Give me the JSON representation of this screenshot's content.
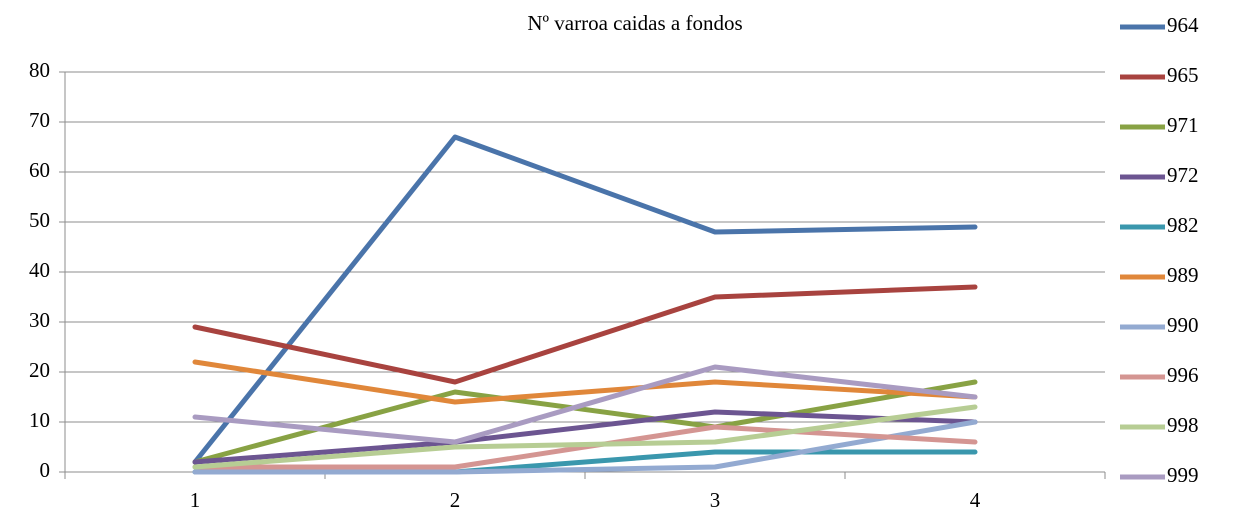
{
  "chart_data": {
    "type": "line",
    "title": "Nº varroa caidas a fondos",
    "categories": [
      "1",
      "2",
      "3",
      "4"
    ],
    "series": [
      {
        "name": "964",
        "color": "#4a74aa",
        "values": [
          2,
          67,
          48,
          49
        ]
      },
      {
        "name": "965",
        "color": "#a8433f",
        "values": [
          29,
          18,
          35,
          37
        ]
      },
      {
        "name": "971",
        "color": "#88a244",
        "values": [
          2,
          16,
          9,
          18
        ]
      },
      {
        "name": "972",
        "color": "#6c5591",
        "values": [
          2,
          6,
          12,
          10
        ]
      },
      {
        "name": "982",
        "color": "#3a97ad",
        "values": [
          0,
          0,
          4,
          4
        ]
      },
      {
        "name": "989",
        "color": "#e0873a",
        "values": [
          22,
          14,
          18,
          15
        ]
      },
      {
        "name": "990",
        "color": "#93aad1",
        "values": [
          0,
          0,
          1,
          10
        ]
      },
      {
        "name": "996",
        "color": "#d49592",
        "values": [
          1,
          1,
          9,
          6
        ]
      },
      {
        "name": "998",
        "color": "#b7cd94",
        "values": [
          1,
          5,
          6,
          13
        ]
      },
      {
        "name": "999",
        "color": "#a99bc1",
        "values": [
          11,
          6,
          21,
          15
        ]
      }
    ],
    "ylim": [
      0,
      80
    ],
    "yticks": [
      0,
      10,
      20,
      30,
      40,
      50,
      60,
      70,
      80
    ],
    "grid": true,
    "legend": "right"
  }
}
